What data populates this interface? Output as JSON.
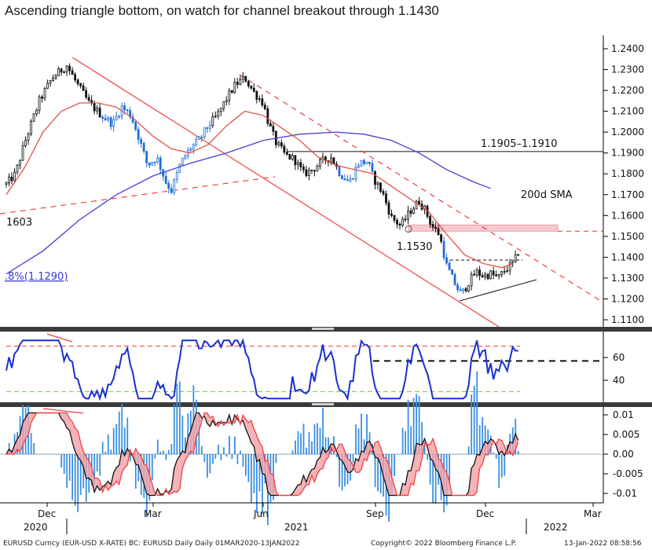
{
  "title": "Ascending triangle bottom, on watch for channel breakout through 1.1430",
  "chart_data": [
    {
      "type": "candlestick",
      "panel": "price",
      "ylim": [
        1.105,
        1.245
      ],
      "y_ticks": [
        "1.1100",
        "1.1200",
        "1.1300",
        "1.1400",
        "1.1500",
        "1.1600",
        "1.1700",
        "1.1800",
        "1.1900",
        "1.2000",
        "1.2100",
        "1.2200",
        "1.2300",
        "1.2400"
      ],
      "x_ticks": [
        "Dec",
        "Mar",
        "Jun",
        "Sep",
        "Dec",
        "Mar"
      ],
      "x_year_labels": [
        "2020",
        "2021",
        "2022"
      ],
      "close_path": [
        [
          0,
          1.175
        ],
        [
          5,
          1.18
        ],
        [
          10,
          1.195
        ],
        [
          18,
          1.215
        ],
        [
          25,
          1.226
        ],
        [
          33,
          1.232
        ],
        [
          38,
          1.224
        ],
        [
          45,
          1.214
        ],
        [
          52,
          1.208
        ],
        [
          58,
          1.204
        ],
        [
          63,
          1.212
        ],
        [
          68,
          1.208
        ],
        [
          72,
          1.198
        ],
        [
          77,
          1.184
        ],
        [
          82,
          1.188
        ],
        [
          87,
          1.176
        ],
        [
          90,
          1.172
        ],
        [
          95,
          1.185
        ],
        [
          100,
          1.192
        ],
        [
          105,
          1.196
        ],
        [
          110,
          1.203
        ],
        [
          115,
          1.208
        ],
        [
          120,
          1.216
        ],
        [
          125,
          1.223
        ],
        [
          130,
          1.226
        ],
        [
          135,
          1.219
        ],
        [
          140,
          1.214
        ],
        [
          143,
          1.204
        ],
        [
          147,
          1.195
        ],
        [
          152,
          1.189
        ],
        [
          157,
          1.187
        ],
        [
          162,
          1.18
        ],
        [
          167,
          1.182
        ],
        [
          172,
          1.186
        ],
        [
          177,
          1.188
        ],
        [
          182,
          1.18
        ],
        [
          187,
          1.176
        ],
        [
          192,
          1.185
        ],
        [
          197,
          1.186
        ],
        [
          200,
          1.178
        ],
        [
          205,
          1.171
        ],
        [
          210,
          1.159
        ],
        [
          215,
          1.155
        ],
        [
          220,
          1.162
        ],
        [
          225,
          1.167
        ],
        [
          228,
          1.163
        ],
        [
          232,
          1.155
        ],
        [
          236,
          1.151
        ],
        [
          240,
          1.136
        ],
        [
          244,
          1.128
        ],
        [
          248,
          1.122
        ],
        [
          252,
          1.128
        ],
        [
          256,
          1.133
        ],
        [
          260,
          1.131
        ],
        [
          264,
          1.132
        ],
        [
          268,
          1.13
        ],
        [
          272,
          1.134
        ],
        [
          276,
          1.137
        ],
        [
          278,
          1.14
        ],
        [
          280,
          1.145
        ]
      ],
      "series": [
        {
          "name": "200d SMA",
          "color": "#4a3fd0"
        },
        {
          "color": "#e0534a"
        }
      ],
      "sma200_path": [
        [
          0,
          1.132
        ],
        [
          20,
          1.143
        ],
        [
          40,
          1.158
        ],
        [
          60,
          1.17
        ],
        [
          80,
          1.179
        ],
        [
          100,
          1.185
        ],
        [
          120,
          1.19
        ],
        [
          140,
          1.196
        ],
        [
          160,
          1.199
        ],
        [
          180,
          1.2
        ],
        [
          195,
          1.199
        ],
        [
          210,
          1.196
        ],
        [
          225,
          1.19
        ],
        [
          240,
          1.182
        ],
        [
          255,
          1.176
        ],
        [
          264,
          1.173
        ]
      ],
      "ma_red_path": [
        [
          0,
          1.17
        ],
        [
          10,
          1.183
        ],
        [
          20,
          1.2
        ],
        [
          30,
          1.21
        ],
        [
          40,
          1.214
        ],
        [
          50,
          1.214
        ],
        [
          60,
          1.212
        ],
        [
          70,
          1.206
        ],
        [
          80,
          1.198
        ],
        [
          90,
          1.192
        ],
        [
          100,
          1.19
        ],
        [
          110,
          1.194
        ],
        [
          120,
          1.203
        ],
        [
          130,
          1.21
        ],
        [
          140,
          1.208
        ],
        [
          150,
          1.202
        ],
        [
          160,
          1.196
        ],
        [
          170,
          1.188
        ],
        [
          180,
          1.184
        ],
        [
          190,
          1.182
        ],
        [
          200,
          1.18
        ],
        [
          210,
          1.174
        ],
        [
          220,
          1.168
        ],
        [
          230,
          1.162
        ],
        [
          240,
          1.151
        ],
        [
          250,
          1.141
        ],
        [
          260,
          1.137
        ],
        [
          270,
          1.135
        ],
        [
          276,
          1.137
        ]
      ],
      "annotations": {
        "resistance_band": "1.1905–1.1910",
        "sma_label": "200d SMA",
        "low_label": "1.1530",
        "left_level": "1603",
        "fib_label": ".8%(1.1290)"
      }
    },
    {
      "type": "line",
      "panel": "RSI",
      "y_ticks": [
        "40",
        "60"
      ],
      "ylim": [
        20,
        80
      ],
      "overbought": 70,
      "oversold": 30,
      "signal_level": 57
    },
    {
      "type": "line",
      "panel": "MACD",
      "y_ticks": [
        "0.01",
        "0.005",
        "0.00",
        "-0.005",
        "-0.01"
      ],
      "ylim": [
        -0.0115,
        0.0115
      ]
    }
  ],
  "footer": {
    "left": "EURUSD Curncy (EUR-USD X-RATE) BC: EURUSD Daily  Daily 01MAR2020-13JAN2022",
    "middle": "Copyright© 2022 Bloomberg Finance L.P.",
    "right": "13-Jan-2022 08:58:56"
  }
}
